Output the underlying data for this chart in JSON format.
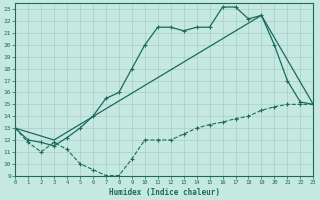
{
  "xlabel": "Humidex (Indice chaleur)",
  "bg_color": "#c5e8e0",
  "line_color": "#1a6b5a",
  "grid_color": "#a8d0c8",
  "curve_dashed_x": [
    0,
    1,
    2,
    3,
    4,
    5,
    6,
    7,
    8,
    9,
    10,
    11,
    12,
    13,
    14,
    15,
    16,
    17,
    18,
    19,
    20,
    21,
    22,
    23
  ],
  "curve_dashed_y": [
    13,
    11.8,
    11,
    11.8,
    11.2,
    10,
    9.5,
    9,
    9,
    10.4,
    12,
    12,
    12,
    12.5,
    13,
    13.3,
    13.5,
    13.8,
    14,
    14.5,
    14.8,
    15,
    15,
    15
  ],
  "curve_upper_x": [
    0,
    1,
    2,
    3,
    4,
    5,
    6,
    7,
    8,
    9,
    10,
    11,
    12,
    13,
    14,
    15,
    16,
    17,
    18,
    19,
    20,
    21,
    22,
    23
  ],
  "curve_upper_y": [
    13,
    12,
    11.8,
    11.5,
    12.2,
    13,
    14,
    15.5,
    16,
    18,
    20,
    21.5,
    21.5,
    21.2,
    21.5,
    21.5,
    23.2,
    23.2,
    22.2,
    22.5,
    20,
    17,
    15.2,
    15
  ],
  "curve_line_x": [
    0,
    3,
    19,
    23
  ],
  "curve_line_y": [
    13,
    12,
    22.5,
    15
  ],
  "xlim": [
    0,
    23
  ],
  "ylim": [
    9,
    23.5
  ],
  "xticks": [
    0,
    1,
    2,
    3,
    4,
    5,
    6,
    7,
    8,
    9,
    10,
    11,
    12,
    13,
    14,
    15,
    16,
    17,
    18,
    19,
    20,
    21,
    22,
    23
  ],
  "yticks": [
    9,
    10,
    11,
    12,
    13,
    14,
    15,
    16,
    17,
    18,
    19,
    20,
    21,
    22,
    23
  ]
}
